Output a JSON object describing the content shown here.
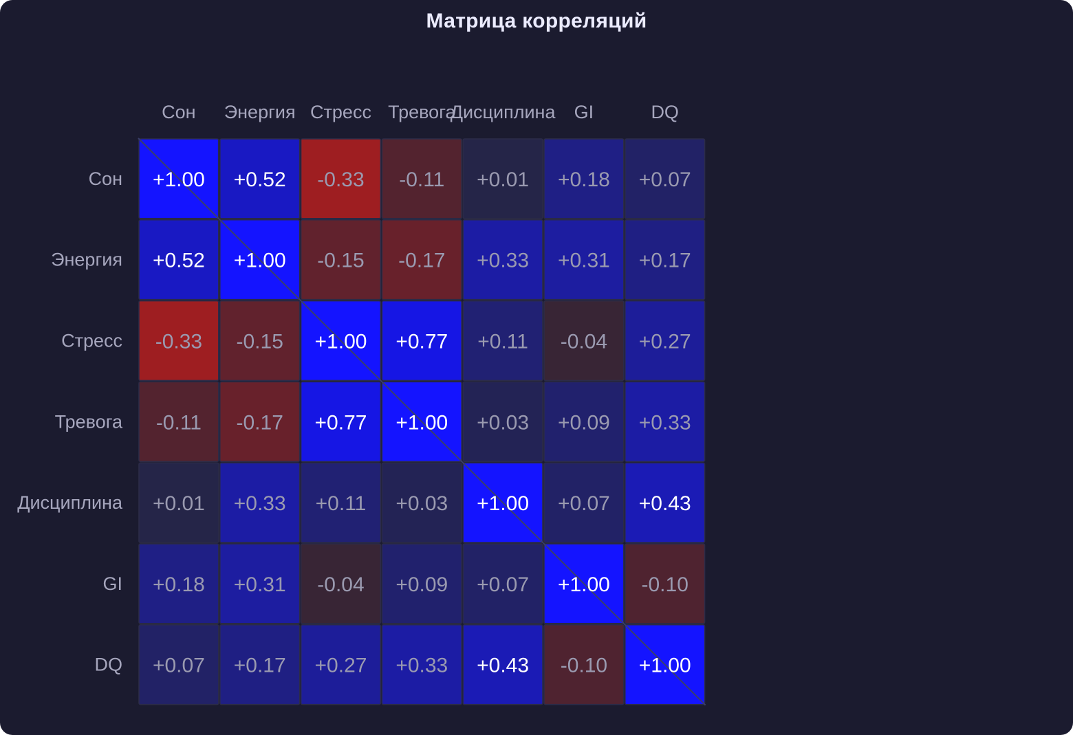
{
  "chart_data": {
    "type": "heatmap",
    "title": "Матрица корреляций",
    "labels": [
      "Сон",
      "Энергия",
      "Стресс",
      "Тревога",
      "Дисциплина",
      "GI",
      "DQ"
    ],
    "matrix": [
      [
        1.0,
        0.52,
        -0.33,
        -0.11,
        0.01,
        0.18,
        0.07
      ],
      [
        0.52,
        1.0,
        -0.15,
        -0.17,
        0.33,
        0.31,
        0.17
      ],
      [
        -0.33,
        -0.15,
        1.0,
        0.77,
        0.11,
        -0.04,
        0.27
      ],
      [
        -0.11,
        -0.17,
        0.77,
        1.0,
        0.03,
        0.09,
        0.33
      ],
      [
        0.01,
        0.33,
        0.11,
        0.03,
        1.0,
        0.07,
        0.43
      ],
      [
        0.18,
        0.31,
        -0.04,
        0.09,
        0.07,
        1.0,
        -0.1
      ],
      [
        0.07,
        0.17,
        0.27,
        0.33,
        0.43,
        -0.1,
        1.0
      ]
    ],
    "value_range": [
      -1,
      1
    ],
    "colors": {
      "background": "#1b1b2f",
      "positive": "#1414ff",
      "negative": "#b81c1c",
      "neutral": "#262638",
      "text_strong": "#ffffff",
      "text_weak": "#9a9ab0"
    }
  }
}
